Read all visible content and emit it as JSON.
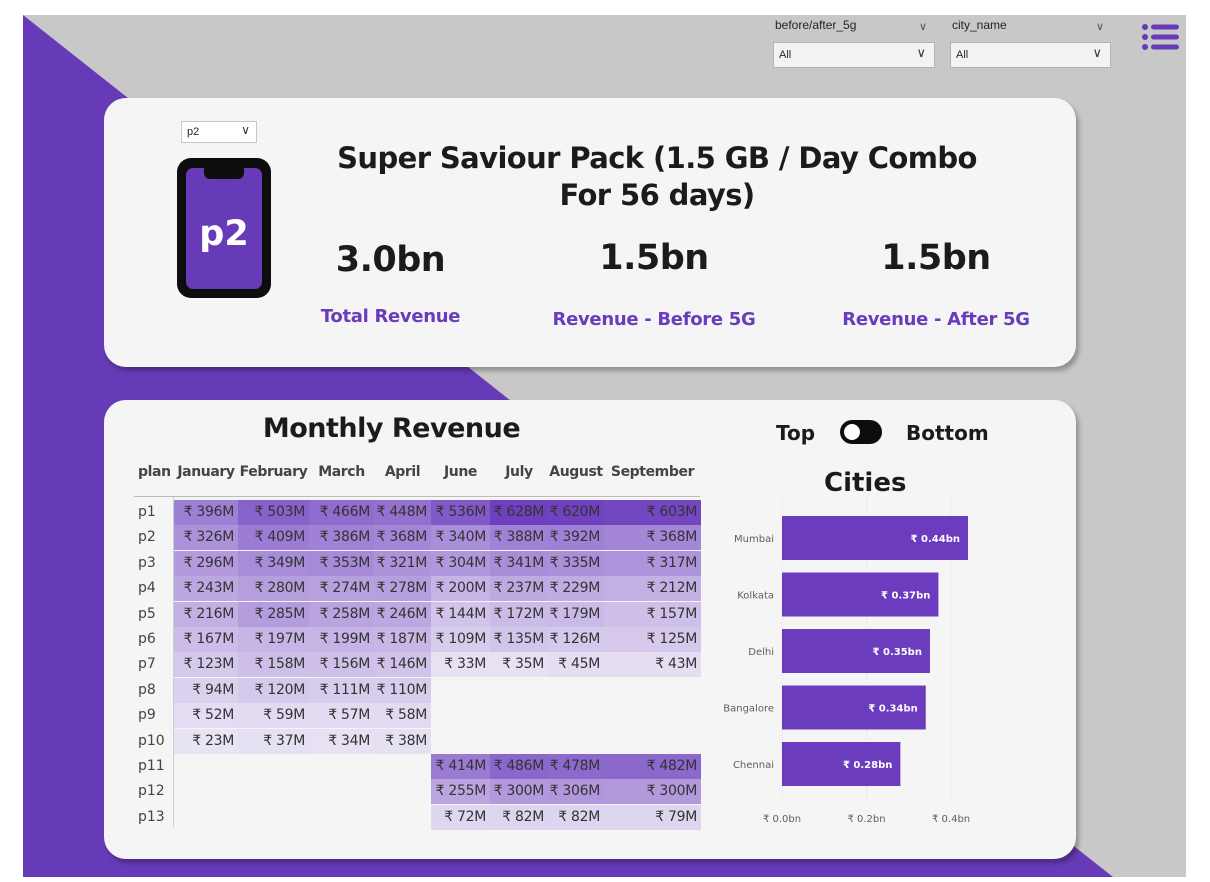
{
  "filters": {
    "before_after": {
      "title": "before/after_5g",
      "value": "All"
    },
    "city": {
      "title": "city_name",
      "value": "All"
    }
  },
  "icons": {
    "menu": "list-menu-icon",
    "phone": "smartphone-icon",
    "chevron": "chevron-down-icon"
  },
  "colors": {
    "accent": "#6a3bbc",
    "bar": "#6b3cbd",
    "background": "#c8c8c8",
    "card": "#f5f5f5"
  },
  "plan_selector": {
    "value": "p2"
  },
  "plan_badge": "p2",
  "pack_title": "Super Saviour Pack (1.5 GB / Day Combo For 56 days)",
  "kpis": [
    {
      "value": "3.0bn",
      "label": "Total Revenue"
    },
    {
      "value": "1.5bn",
      "label": "Revenue - Before 5G"
    },
    {
      "value": "1.5bn",
      "label": "Revenue - After 5G"
    }
  ],
  "monthly": {
    "title": "Monthly Revenue",
    "columns": [
      "plan",
      "January",
      "February",
      "March",
      "April",
      "June",
      "July",
      "August",
      "September"
    ],
    "rows": [
      {
        "plan": "p1",
        "values": [
          "₹ 396M",
          "₹ 503M",
          "₹ 466M",
          "₹ 448M",
          "₹ 536M",
          "₹ 628M",
          "₹ 620M",
          "₹ 603M"
        ],
        "raw": [
          396,
          503,
          466,
          448,
          536,
          628,
          620,
          603
        ]
      },
      {
        "plan": "p2",
        "values": [
          "₹ 326M",
          "₹ 409M",
          "₹ 386M",
          "₹ 368M",
          "₹ 340M",
          "₹ 388M",
          "₹ 392M",
          "₹ 368M"
        ],
        "raw": [
          326,
          409,
          386,
          368,
          340,
          388,
          392,
          368
        ]
      },
      {
        "plan": "p3",
        "values": [
          "₹ 296M",
          "₹ 349M",
          "₹ 353M",
          "₹ 321M",
          "₹ 304M",
          "₹ 341M",
          "₹ 335M",
          "₹ 317M"
        ],
        "raw": [
          296,
          349,
          353,
          321,
          304,
          341,
          335,
          317
        ]
      },
      {
        "plan": "p4",
        "values": [
          "₹ 243M",
          "₹ 280M",
          "₹ 274M",
          "₹ 278M",
          "₹ 200M",
          "₹ 237M",
          "₹ 229M",
          "₹ 212M"
        ],
        "raw": [
          243,
          280,
          274,
          278,
          200,
          237,
          229,
          212
        ]
      },
      {
        "plan": "p5",
        "values": [
          "₹ 216M",
          "₹ 285M",
          "₹ 258M",
          "₹ 246M",
          "₹ 144M",
          "₹ 172M",
          "₹ 179M",
          "₹ 157M"
        ],
        "raw": [
          216,
          285,
          258,
          246,
          144,
          172,
          179,
          157
        ]
      },
      {
        "plan": "p6",
        "values": [
          "₹ 167M",
          "₹ 197M",
          "₹ 199M",
          "₹ 187M",
          "₹ 109M",
          "₹ 135M",
          "₹ 126M",
          "₹ 125M"
        ],
        "raw": [
          167,
          197,
          199,
          187,
          109,
          135,
          126,
          125
        ]
      },
      {
        "plan": "p7",
        "values": [
          "₹ 123M",
          "₹ 158M",
          "₹ 156M",
          "₹ 146M",
          "₹ 33M",
          "₹ 35M",
          "₹ 45M",
          "₹ 43M"
        ],
        "raw": [
          123,
          158,
          156,
          146,
          33,
          35,
          45,
          43
        ]
      },
      {
        "plan": "p8",
        "values": [
          "₹ 94M",
          "₹ 120M",
          "₹ 111M",
          "₹ 110M",
          "",
          "",
          "",
          ""
        ],
        "raw": [
          94,
          120,
          111,
          110,
          null,
          null,
          null,
          null
        ]
      },
      {
        "plan": "p9",
        "values": [
          "₹ 52M",
          "₹ 59M",
          "₹ 57M",
          "₹ 58M",
          "",
          "",
          "",
          ""
        ],
        "raw": [
          52,
          59,
          57,
          58,
          null,
          null,
          null,
          null
        ]
      },
      {
        "plan": "p10",
        "values": [
          "₹ 23M",
          "₹ 37M",
          "₹ 34M",
          "₹ 38M",
          "",
          "",
          "",
          ""
        ],
        "raw": [
          23,
          37,
          34,
          38,
          null,
          null,
          null,
          null
        ]
      },
      {
        "plan": "p11",
        "values": [
          "",
          "",
          "",
          "",
          "₹ 414M",
          "₹ 486M",
          "₹ 478M",
          "₹ 482M"
        ],
        "raw": [
          null,
          null,
          null,
          null,
          414,
          486,
          478,
          482
        ]
      },
      {
        "plan": "p12",
        "values": [
          "",
          "",
          "",
          "",
          "₹ 255M",
          "₹ 300M",
          "₹ 306M",
          "₹ 300M"
        ],
        "raw": [
          null,
          null,
          null,
          null,
          255,
          300,
          306,
          300
        ]
      },
      {
        "plan": "p13",
        "values": [
          "",
          "",
          "",
          "",
          "₹ 72M",
          "₹ 82M",
          "₹ 82M",
          "₹ 79M"
        ],
        "raw": [
          null,
          null,
          null,
          null,
          72,
          82,
          82,
          79
        ]
      }
    ]
  },
  "toggle": {
    "left_label": "Top",
    "right_label": "Bottom",
    "state": "Top"
  },
  "chart_data": {
    "type": "bar",
    "orientation": "horizontal",
    "title": "Cities",
    "categories": [
      "Mumbai",
      "Kolkata",
      "Delhi",
      "Bangalore",
      "Chennai"
    ],
    "values": [
      0.44,
      0.37,
      0.35,
      0.34,
      0.28
    ],
    "data_labels": [
      "₹ 0.44bn",
      "₹ 0.37bn",
      "₹ 0.35bn",
      "₹ 0.34bn",
      "₹ 0.28bn"
    ],
    "xlim": [
      0,
      0.44
    ],
    "ticks": [
      0,
      0.2,
      0.4
    ],
    "tick_labels": [
      "₹ 0.0bn",
      "₹ 0.2bn",
      "₹ 0.4bn"
    ],
    "xlabel": "",
    "ylabel": "",
    "grid": true
  }
}
